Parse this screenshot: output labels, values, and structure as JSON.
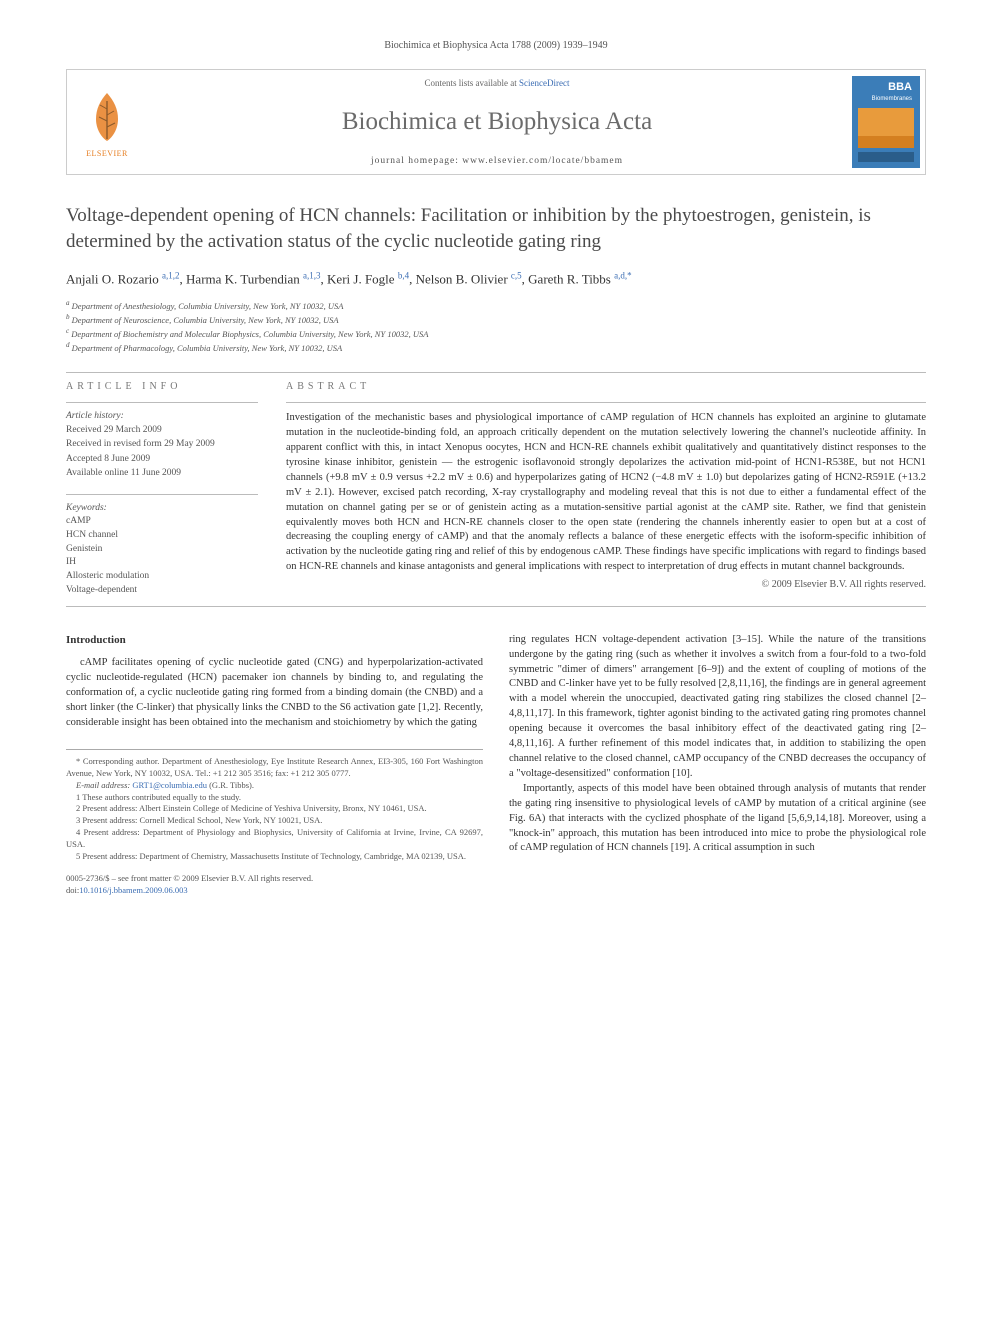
{
  "running_header": "Biochimica et Biophysica Acta 1788 (2009) 1939–1949",
  "masthead": {
    "contents_prefix": "Contents lists available at ",
    "contents_link": "ScienceDirect",
    "journal_title": "Biochimica et Biophysica Acta",
    "homepage_prefix": "journal homepage: ",
    "homepage_url": "www.elsevier.com/locate/bbamem",
    "elsevier_label": "ELSEVIER",
    "cover_label_top": "BBA",
    "cover_label_bottom": "Biomembranes"
  },
  "title": "Voltage-dependent opening of HCN channels: Facilitation or inhibition by the phytoestrogen, genistein, is determined by the activation status of the cyclic nucleotide gating ring",
  "authors_html": "Anjali O. Rozario <a class='ref' href='#'><sup>a,1,2</sup></a>, Harma K. Turbendian <a class='ref' href='#'><sup>a,1,3</sup></a>, Keri J. Fogle <a class='ref' href='#'><sup>b,4</sup></a>, Nelson B. Olivier <a class='ref' href='#'><sup>c,5</sup></a>, Gareth R. Tibbs <a class='ref' href='#'><sup>a,d,*</sup></a>",
  "affiliations": [
    "a Department of Anesthesiology, Columbia University, New York, NY 10032, USA",
    "b Department of Neuroscience, Columbia University, New York, NY 10032, USA",
    "c Department of Biochemistry and Molecular Biophysics, Columbia University, New York, NY 10032, USA",
    "d Department of Pharmacology, Columbia University, New York, NY 10032, USA"
  ],
  "info_labels": {
    "article_info": "ARTICLE INFO",
    "abstract": "ABSTRACT",
    "history": "Article history:",
    "keywords": "Keywords:"
  },
  "history": [
    "Received 29 March 2009",
    "Received in revised form 29 May 2009",
    "Accepted 8 June 2009",
    "Available online 11 June 2009"
  ],
  "keywords": [
    "cAMP",
    "HCN channel",
    "Genistein",
    "IH",
    "Allosteric modulation",
    "Voltage-dependent"
  ],
  "abstract": "Investigation of the mechanistic bases and physiological importance of cAMP regulation of HCN channels has exploited an arginine to glutamate mutation in the nucleotide-binding fold, an approach critically dependent on the mutation selectively lowering the channel's nucleotide affinity. In apparent conflict with this, in intact Xenopus oocytes, HCN and HCN-RE channels exhibit qualitatively and quantitatively distinct responses to the tyrosine kinase inhibitor, genistein — the estrogenic isoflavonoid strongly depolarizes the activation mid-point of HCN1-R538E, but not HCN1 channels (+9.8 mV ± 0.9 versus +2.2 mV ± 0.6) and hyperpolarizes gating of HCN2 (−4.8 mV ± 1.0) but depolarizes gating of HCN2-R591E (+13.2 mV ± 2.1). However, excised patch recording, X-ray crystallography and modeling reveal that this is not due to either a fundamental effect of the mutation on channel gating per se or of genistein acting as a mutation-sensitive partial agonist at the cAMP site. Rather, we find that genistein equivalently moves both HCN and HCN-RE channels closer to the open state (rendering the channels inherently easier to open but at a cost of decreasing the coupling energy of cAMP) and that the anomaly reflects a balance of these energetic effects with the isoform-specific inhibition of activation by the nucleotide gating ring and relief of this by endogenous cAMP. These findings have specific implications with regard to findings based on HCN-RE channels and kinase antagonists and general implications with respect to interpretation of drug effects in mutant channel backgrounds.",
  "copyright": "© 2009 Elsevier B.V. All rights reserved.",
  "sections": {
    "intro_label": "Introduction",
    "intro_p1": "cAMP facilitates opening of cyclic nucleotide gated (CNG) and hyperpolarization-activated cyclic nucleotide-regulated (HCN) pacemaker ion channels by binding to, and regulating the conformation of, a cyclic nucleotide gating ring formed from a binding domain (the CNBD) and a short linker (the C-linker) that physically links the CNBD to the S6 activation gate [1,2]. Recently, considerable insight has been obtained into the mechanism and stoichiometry by which the gating",
    "intro_p2": "ring regulates HCN voltage-dependent activation [3–15]. While the nature of the transitions undergone by the gating ring (such as whether it involves a switch from a four-fold to a two-fold symmetric \"dimer of dimers\" arrangement [6–9]) and the extent of coupling of motions of the CNBD and C-linker have yet to be fully resolved [2,8,11,16], the findings are in general agreement with a model wherein the unoccupied, deactivated gating ring stabilizes the closed channel [2–4,8,11,17]. In this framework, tighter agonist binding to the activated gating ring promotes channel opening because it overcomes the basal inhibitory effect of the deactivated gating ring [2–4,8,11,16]. A further refinement of this model indicates that, in addition to stabilizing the open channel relative to the closed channel, cAMP occupancy of the CNBD decreases the occupancy of a \"voltage-desensitized\" conformation [10].",
    "intro_p3": "Importantly, aspects of this model have been obtained through analysis of mutants that render the gating ring insensitive to physiological levels of cAMP by mutation of a critical arginine (see Fig. 6A) that interacts with the cyclized phosphate of the ligand [5,6,9,14,18]. Moreover, using a \"knock-in\" approach, this mutation has been introduced into mice to probe the physiological role of cAMP regulation of HCN channels [19]. A critical assumption in such"
  },
  "footnotes": {
    "corr": "* Corresponding author. Department of Anesthesiology, Eye Institute Research Annex, EI3-305, 160 Fort Washington Avenue, New York, NY 10032, USA. Tel.: +1 212 305 3516; fax: +1 212 305 0777.",
    "email_label": "E-mail address: ",
    "email": "GRT1@columbia.edu",
    "email_suffix": " (G.R. Tibbs).",
    "n1": "1 These authors contributed equally to the study.",
    "n2": "2 Present address: Albert Einstein College of Medicine of Yeshiva University, Bronx, NY 10461, USA.",
    "n3": "3 Present address: Cornell Medical School, New York, NY 10021, USA.",
    "n4": "4 Present address: Department of Physiology and Biophysics, University of California at Irvine, Irvine, CA 92697, USA.",
    "n5": "5 Present address: Department of Chemistry, Massachusetts Institute of Technology, Cambridge, MA 02139, USA."
  },
  "footer": {
    "line1": "0005-2736/$ – see front matter © 2009 Elsevier B.V. All rights reserved.",
    "doi_label": "doi:",
    "doi": "10.1016/j.bbamem.2009.06.003"
  },
  "colors": {
    "link": "#3b6db3",
    "elsevier_orange": "#e67e22",
    "cover_blue": "#3b7db8",
    "cover_orange": "#e89b3c",
    "rule": "#bbbbbb"
  }
}
